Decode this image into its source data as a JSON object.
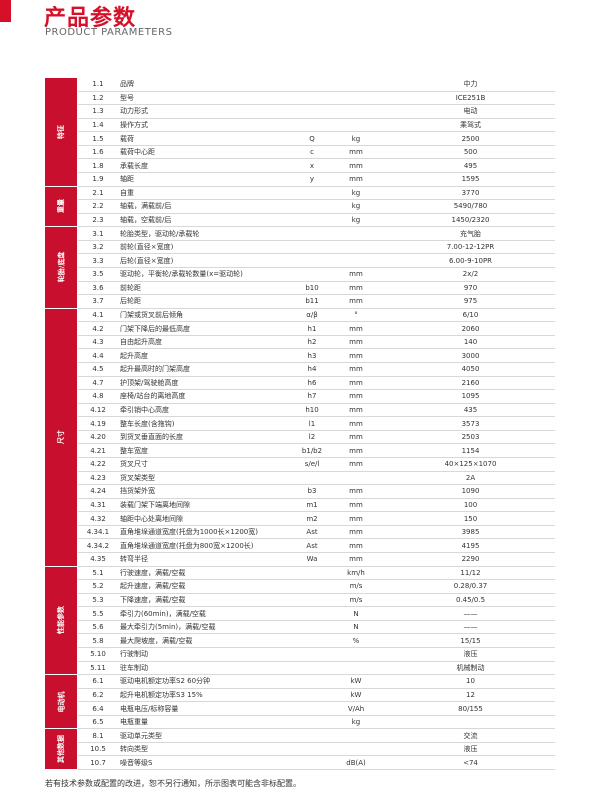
{
  "header": {
    "title": "产品参数",
    "subtitle": "PRODUCT PARAMETERS"
  },
  "sections": [
    {
      "label": "特征",
      "rows": [
        {
          "no": "1.1",
          "name": "品牌",
          "value": "中力"
        },
        {
          "no": "1.2",
          "name": "型号",
          "value": "ICE251B"
        },
        {
          "no": "1.3",
          "name": "动力形式",
          "value": "电动"
        },
        {
          "no": "1.4",
          "name": "操作方式",
          "value": "乘驾式"
        },
        {
          "no": "1.5",
          "name": "载荷",
          "symbol": "Q",
          "unit": "kg",
          "value": "2500"
        },
        {
          "no": "1.6",
          "name": "载荷中心距",
          "symbol": "c",
          "unit": "mm",
          "value": "500"
        },
        {
          "no": "1.8",
          "name": "承载长度",
          "symbol": "x",
          "unit": "mm",
          "value": "495"
        },
        {
          "no": "1.9",
          "name": "轴距",
          "symbol": "y",
          "unit": "mm",
          "value": "1595"
        }
      ]
    },
    {
      "label": "重量",
      "rows": [
        {
          "no": "2.1",
          "name": "自重",
          "unit": "kg",
          "value": "3770"
        },
        {
          "no": "2.2",
          "name": "轴载，满载前/后",
          "unit": "kg",
          "value": "5490/780"
        },
        {
          "no": "2.3",
          "name": "轴载，空载前/后",
          "unit": "kg",
          "value": "1450/2320"
        }
      ]
    },
    {
      "label": "轮胎/底盘",
      "rows": [
        {
          "no": "3.1",
          "name": "轮胎类型，驱动轮/承载轮",
          "value": "充气胎"
        },
        {
          "no": "3.2",
          "name": "前轮(直径×宽度)",
          "value": "7.00-12-12PR"
        },
        {
          "no": "3.3",
          "name": "后轮(直径×宽度)",
          "value": "6.00-9-10PR"
        },
        {
          "no": "3.5",
          "name": "驱动轮，平衡轮/承载轮数量(x=驱动轮)",
          "unit": "mm",
          "value": "2x/2"
        },
        {
          "no": "3.6",
          "name": "前轮距",
          "symbol": "b10",
          "unit": "mm",
          "value": "970"
        },
        {
          "no": "3.7",
          "name": "后轮距",
          "symbol": "b11",
          "unit": "mm",
          "value": "975"
        }
      ]
    },
    {
      "label": "尺寸",
      "rows": [
        {
          "no": "4.1",
          "name": "门架或货叉前后倾角",
          "symbol": "α/β",
          "unit": "°",
          "value": "6/10"
        },
        {
          "no": "4.2",
          "name": "门架下降后的最低高度",
          "symbol": "h1",
          "unit": "mm",
          "value": "2060"
        },
        {
          "no": "4.3",
          "name": "自由起升高度",
          "symbol": "h2",
          "unit": "mm",
          "value": "140"
        },
        {
          "no": "4.4",
          "name": "起升高度",
          "symbol": "h3",
          "unit": "mm",
          "value": "3000"
        },
        {
          "no": "4.5",
          "name": "起升最高时的门架高度",
          "symbol": "h4",
          "unit": "mm",
          "value": "4050"
        },
        {
          "no": "4.7",
          "name": "护顶架/驾驶舱高度",
          "symbol": "h6",
          "unit": "mm",
          "value": "2160"
        },
        {
          "no": "4.8",
          "name": "座椅/站台的离地高度",
          "symbol": "h7",
          "unit": "mm",
          "value": "1095"
        },
        {
          "no": "4.12",
          "name": "牵引销中心高度",
          "symbol": "h10",
          "unit": "mm",
          "value": "435"
        },
        {
          "no": "4.19",
          "name": "整车长度(含拖钩)",
          "symbol": "l1",
          "unit": "mm",
          "value": "3573"
        },
        {
          "no": "4.20",
          "name": "到货叉垂直面的长度",
          "symbol": "l2",
          "unit": "mm",
          "value": "2503"
        },
        {
          "no": "4.21",
          "name": "整车宽度",
          "symbol": "b1/b2",
          "unit": "mm",
          "value": "1154"
        },
        {
          "no": "4.22",
          "name": "货叉尺寸",
          "symbol": "s/e/l",
          "unit": "mm",
          "value": "40×125×1070"
        },
        {
          "no": "4.23",
          "name": "货叉架类型",
          "value": "2A"
        },
        {
          "no": "4.24",
          "name": "挡货架外宽",
          "symbol": "b3",
          "unit": "mm",
          "value": "1090"
        },
        {
          "no": "4.31",
          "name": "装载门架下端离地间隙",
          "symbol": "m1",
          "unit": "mm",
          "value": "100"
        },
        {
          "no": "4.32",
          "name": "轴距中心处离地间隙",
          "symbol": "m2",
          "unit": "mm",
          "value": "150"
        },
        {
          "no": "4.34.1",
          "name": "直角堆垛通道宽度(托盘为1000长×1200宽)",
          "symbol": "Ast",
          "unit": "mm",
          "value": "3985"
        },
        {
          "no": "4.34.2",
          "name": "直角堆垛通道宽度(托盘为800宽×1200长)",
          "symbol": "Ast",
          "unit": "mm",
          "value": "4195"
        },
        {
          "no": "4.35",
          "name": "转弯半径",
          "symbol": "Wa",
          "unit": "mm",
          "value": "2290"
        }
      ]
    },
    {
      "label": "性能参数",
      "rows": [
        {
          "no": "5.1",
          "name": "行驶速度，满载/空载",
          "unit": "km/h",
          "value": "11/12"
        },
        {
          "no": "5.2",
          "name": "起升速度，满载/空载",
          "unit": "m/s",
          "value": "0.28/0.37"
        },
        {
          "no": "5.3",
          "name": "下降速度，满载/空载",
          "unit": "m/s",
          "value": "0.45/0.5"
        },
        {
          "no": "5.5",
          "name": "牵引力(60min)，满载/空载",
          "unit": "N",
          "value": "——"
        },
        {
          "no": "5.6",
          "name": "最大牵引力(5min)，满载/空载",
          "unit": "N",
          "value": "——"
        },
        {
          "no": "5.8",
          "name": "最大爬坡度，满载/空载",
          "unit": "%",
          "value": "15/15"
        },
        {
          "no": "5.10",
          "name": "行驶制动",
          "value": "液压"
        },
        {
          "no": "5.11",
          "name": "驻车制动",
          "value": "机械制动"
        }
      ]
    },
    {
      "label": "电动机",
      "rows": [
        {
          "no": "6.1",
          "name": "驱动电机额定功率S2 60分钟",
          "unit": "kW",
          "value": "10"
        },
        {
          "no": "6.2",
          "name": "起升电机额定功率S3 15%",
          "unit": "kW",
          "value": "12"
        },
        {
          "no": "6.4",
          "name": "电瓶电压/标称容量",
          "unit": "V/Ah",
          "value": "80/155"
        },
        {
          "no": "6.5",
          "name": "电瓶重量",
          "unit": "kg"
        }
      ]
    },
    {
      "label": "其他数据",
      "rows": [
        {
          "no": "8.1",
          "name": "驱动单元类型",
          "value": "交流"
        },
        {
          "no": "10.5",
          "name": "转向类型",
          "value": "液压"
        },
        {
          "no": "10.7",
          "name": "噪音等级S",
          "unit": "dB(A)",
          "value": "<74"
        }
      ]
    }
  ],
  "footer": "若有技术参数或配置的改进，恕不另行通知，所示图表可能含非标配置。"
}
